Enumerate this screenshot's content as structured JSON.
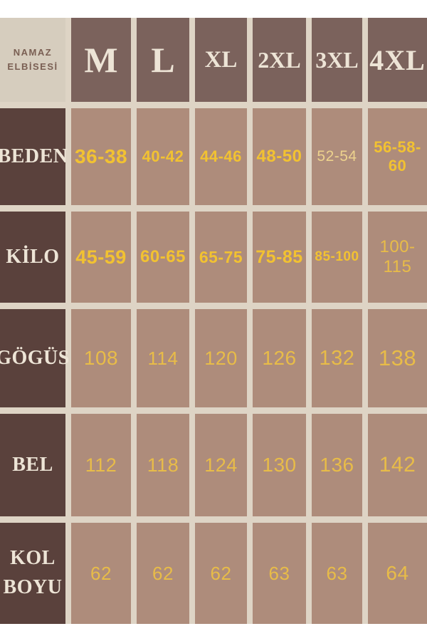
{
  "corner": {
    "line1": "NAMAZ",
    "line2": "ELBİSESİ"
  },
  "chart_data": {
    "type": "table",
    "title": "NAMAZ ELBİSESİ",
    "columns": [
      "M",
      "L",
      "XL",
      "2XL",
      "3XL",
      "4XL"
    ],
    "rows": [
      {
        "label": "BEDEN",
        "values": [
          "36-38",
          "40-42",
          "44-46",
          "48-50",
          "52-54",
          "56-58-60"
        ]
      },
      {
        "label": "KİLO",
        "values": [
          "45-59",
          "60-65",
          "65-75",
          "75-85",
          "85-100",
          "100-115"
        ]
      },
      {
        "label": "GÖGÜS",
        "values": [
          "108",
          "114",
          "120",
          "126",
          "132",
          "138"
        ]
      },
      {
        "label": "BEL",
        "values": [
          "112",
          "118",
          "124",
          "130",
          "136",
          "142"
        ]
      },
      {
        "label": "KOL BOYU",
        "values": [
          "62",
          "62",
          "62",
          "63",
          "63",
          "64"
        ]
      }
    ]
  },
  "colors": {
    "gap-bg": "#ded4c5",
    "corner-bg": "#d6cdbe",
    "corner-text": "#7a5f53",
    "header-bg": "#7b625c",
    "label-bg": "#5a413c",
    "cell-bg": "#ae8c7b",
    "cream-text": "#ede4d6",
    "num-bold": "#f2c231",
    "num-med": "#e8bc48",
    "num-light": "#edd28d"
  }
}
